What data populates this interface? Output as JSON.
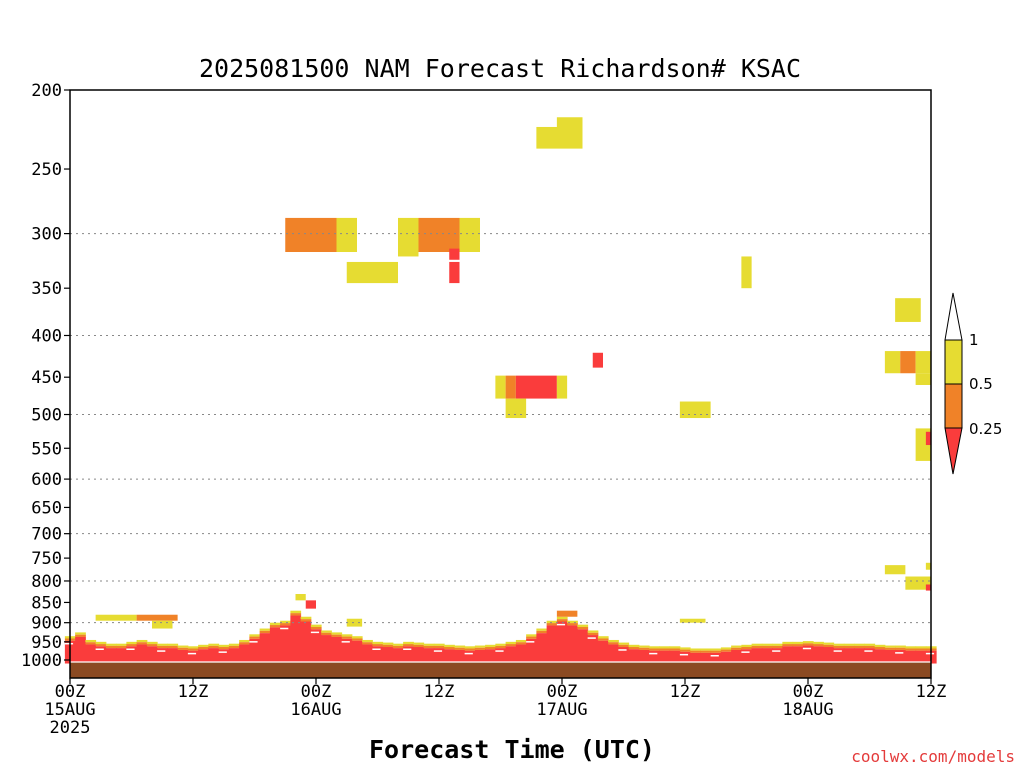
{
  "chart_data": {
    "type": "heatmap",
    "title": "2025081500 NAM Forecast Richardson# KSAC",
    "xlabel": "Forecast Time (UTC)",
    "credit": "coolwx.com/models",
    "y_ticks": [
      "200",
      "250",
      "300",
      "350",
      "400",
      "450",
      "500",
      "550",
      "600",
      "650",
      "700",
      "750",
      "800",
      "850",
      "900",
      "950",
      "1000"
    ],
    "y_gridlines": [
      300,
      400,
      500,
      600,
      700,
      800,
      900
    ],
    "x_ticks": [
      {
        "hour": 0,
        "line1": "00Z",
        "line2": "15AUG",
        "line3": "2025"
      },
      {
        "hour": 12,
        "line1": "12Z",
        "line2": "",
        "line3": ""
      },
      {
        "hour": 24,
        "line1": "00Z",
        "line2": "16AUG",
        "line3": ""
      },
      {
        "hour": 36,
        "line1": "12Z",
        "line2": "",
        "line3": ""
      },
      {
        "hour": 48,
        "line1": "00Z",
        "line2": "17AUG",
        "line3": ""
      },
      {
        "hour": 60,
        "line1": "12Z",
        "line2": "",
        "line3": ""
      },
      {
        "hour": 72,
        "line1": "00Z",
        "line2": "18AUG",
        "line3": ""
      },
      {
        "hour": 84,
        "line1": "12Z",
        "line2": "",
        "line3": ""
      }
    ],
    "x_range_hours": [
      0,
      84
    ],
    "y_range_hPa": [
      200,
      1000
    ],
    "y_scale": "log-pressure",
    "legend": {
      "placement": "right",
      "labels": [
        "1",
        "0.5",
        "0.25"
      ],
      "bins": [
        {
          "range": "0.5-1",
          "color": "#e6dc32"
        },
        {
          "range": "0.25-0.5",
          "color": "#f08228"
        },
        {
          "range": "<0.25",
          "color": "#fa3c3c"
        }
      ]
    },
    "colors": {
      "yellow": "#e6dc32",
      "orange": "#f08228",
      "red": "#fa3c3c",
      "ground": "#8b4a22"
    },
    "patches": [
      {
        "h0": 45.5,
        "h1": 50.0,
        "p0": 222,
        "p1": 236,
        "class": "yellow"
      },
      {
        "h0": 47.5,
        "h1": 50.0,
        "p0": 216,
        "p1": 226,
        "class": "yellow"
      },
      {
        "h0": 21.0,
        "h1": 26.0,
        "p0": 287,
        "p1": 316,
        "class": "orange"
      },
      {
        "h0": 26.0,
        "h1": 28.0,
        "p0": 287,
        "p1": 316,
        "class": "yellow"
      },
      {
        "h0": 32.0,
        "h1": 34.0,
        "p0": 287,
        "p1": 320,
        "class": "yellow"
      },
      {
        "h0": 34.0,
        "h1": 38.0,
        "p0": 287,
        "p1": 316,
        "class": "orange"
      },
      {
        "h0": 38.0,
        "h1": 40.0,
        "p0": 287,
        "p1": 316,
        "class": "yellow"
      },
      {
        "h0": 37.0,
        "h1": 38.0,
        "p0": 313,
        "p1": 323,
        "class": "red"
      },
      {
        "h0": 27.0,
        "h1": 32.0,
        "p0": 325,
        "p1": 345,
        "class": "yellow"
      },
      {
        "h0": 37.0,
        "h1": 38.0,
        "p0": 325,
        "p1": 345,
        "class": "red"
      },
      {
        "h0": 51.0,
        "h1": 52.0,
        "p0": 420,
        "p1": 438,
        "class": "red"
      },
      {
        "h0": 41.5,
        "h1": 42.5,
        "p0": 448,
        "p1": 478,
        "class": "yellow"
      },
      {
        "h0": 42.5,
        "h1": 43.5,
        "p0": 448,
        "p1": 478,
        "class": "orange"
      },
      {
        "h0": 43.5,
        "h1": 47.5,
        "p0": 448,
        "p1": 478,
        "class": "red"
      },
      {
        "h0": 47.5,
        "h1": 48.5,
        "p0": 448,
        "p1": 478,
        "class": "yellow"
      },
      {
        "h0": 42.5,
        "h1": 44.5,
        "p0": 478,
        "p1": 505,
        "class": "yellow"
      },
      {
        "h0": 59.5,
        "h1": 62.5,
        "p0": 482,
        "p1": 505,
        "class": "yellow"
      },
      {
        "h0": 65.5,
        "h1": 66.5,
        "p0": 320,
        "p1": 350,
        "class": "yellow"
      },
      {
        "h0": 80.5,
        "h1": 83.0,
        "p0": 360,
        "p1": 385,
        "class": "yellow"
      },
      {
        "h0": 79.5,
        "h1": 81.0,
        "p0": 418,
        "p1": 445,
        "class": "yellow"
      },
      {
        "h0": 81.0,
        "h1": 82.5,
        "p0": 418,
        "p1": 445,
        "class": "orange"
      },
      {
        "h0": 82.5,
        "h1": 84.0,
        "p0": 418,
        "p1": 445,
        "class": "yellow"
      },
      {
        "h0": 82.5,
        "h1": 84.0,
        "p0": 445,
        "p1": 460,
        "class": "yellow"
      },
      {
        "h0": 82.5,
        "h1": 84.0,
        "p0": 520,
        "p1": 570,
        "class": "yellow"
      },
      {
        "h0": 83.5,
        "h1": 84.0,
        "p0": 525,
        "p1": 545,
        "class": "red"
      },
      {
        "h0": 79.5,
        "h1": 81.5,
        "p0": 765,
        "p1": 785,
        "class": "yellow"
      },
      {
        "h0": 81.5,
        "h1": 84.0,
        "p0": 790,
        "p1": 820,
        "class": "yellow"
      },
      {
        "h0": 83.5,
        "h1": 84.0,
        "p0": 760,
        "p1": 775,
        "class": "yellow"
      },
      {
        "h0": 83.5,
        "h1": 84.0,
        "p0": 808,
        "p1": 822,
        "class": "red"
      },
      {
        "h0": 2.5,
        "h1": 6.5,
        "p0": 880,
        "p1": 895,
        "class": "yellow"
      },
      {
        "h0": 6.5,
        "h1": 10.5,
        "p0": 880,
        "p1": 895,
        "class": "orange"
      },
      {
        "h0": 8.0,
        "h1": 10.0,
        "p0": 895,
        "p1": 915,
        "class": "yellow"
      },
      {
        "h0": 22.0,
        "h1": 23.0,
        "p0": 830,
        "p1": 845,
        "class": "yellow"
      },
      {
        "h0": 23.0,
        "h1": 24.0,
        "p0": 845,
        "p1": 865,
        "class": "red"
      },
      {
        "h0": 27.0,
        "h1": 28.5,
        "p0": 890,
        "p1": 910,
        "class": "yellow"
      },
      {
        "h0": 47.5,
        "h1": 49.5,
        "p0": 870,
        "p1": 885,
        "class": "orange"
      },
      {
        "h0": 59.5,
        "h1": 62.0,
        "p0": 890,
        "p1": 900,
        "class": "yellow"
      }
    ],
    "columns_hPa_top": [
      [
        0,
        935
      ],
      [
        1,
        925
      ],
      [
        2,
        945
      ],
      [
        3,
        950
      ],
      [
        4,
        955
      ],
      [
        5,
        955
      ],
      [
        6,
        950
      ],
      [
        7,
        945
      ],
      [
        8,
        950
      ],
      [
        9,
        955
      ],
      [
        10,
        955
      ],
      [
        11,
        960
      ],
      [
        12,
        962
      ],
      [
        13,
        958
      ],
      [
        14,
        955
      ],
      [
        15,
        958
      ],
      [
        16,
        955
      ],
      [
        17,
        945
      ],
      [
        18,
        930
      ],
      [
        19,
        915
      ],
      [
        20,
        900
      ],
      [
        21,
        895
      ],
      [
        22,
        870
      ],
      [
        23,
        885
      ],
      [
        24,
        905
      ],
      [
        25,
        920
      ],
      [
        26,
        925
      ],
      [
        27,
        930
      ],
      [
        28,
        935
      ],
      [
        29,
        945
      ],
      [
        30,
        950
      ],
      [
        31,
        952
      ],
      [
        32,
        955
      ],
      [
        33,
        950
      ],
      [
        34,
        952
      ],
      [
        35,
        955
      ],
      [
        36,
        955
      ],
      [
        37,
        958
      ],
      [
        38,
        960
      ],
      [
        39,
        962
      ],
      [
        40,
        960
      ],
      [
        41,
        958
      ],
      [
        42,
        955
      ],
      [
        43,
        950
      ],
      [
        44,
        945
      ],
      [
        45,
        930
      ],
      [
        46,
        915
      ],
      [
        47,
        895
      ],
      [
        48,
        885
      ],
      [
        49,
        895
      ],
      [
        50,
        905
      ],
      [
        51,
        920
      ],
      [
        52,
        935
      ],
      [
        53,
        945
      ],
      [
        54,
        952
      ],
      [
        55,
        958
      ],
      [
        56,
        960
      ],
      [
        57,
        962
      ],
      [
        58,
        962
      ],
      [
        59,
        962
      ],
      [
        60,
        965
      ],
      [
        61,
        968
      ],
      [
        62,
        968
      ],
      [
        63,
        968
      ],
      [
        64,
        965
      ],
      [
        65,
        960
      ],
      [
        66,
        958
      ],
      [
        67,
        955
      ],
      [
        68,
        955
      ],
      [
        69,
        955
      ],
      [
        70,
        950
      ],
      [
        71,
        950
      ],
      [
        72,
        948
      ],
      [
        73,
        950
      ],
      [
        74,
        952
      ],
      [
        75,
        955
      ],
      [
        76,
        955
      ],
      [
        77,
        955
      ],
      [
        78,
        955
      ],
      [
        79,
        958
      ],
      [
        80,
        960
      ],
      [
        81,
        960
      ],
      [
        82,
        962
      ],
      [
        83,
        962
      ],
      [
        84,
        962
      ]
    ]
  }
}
